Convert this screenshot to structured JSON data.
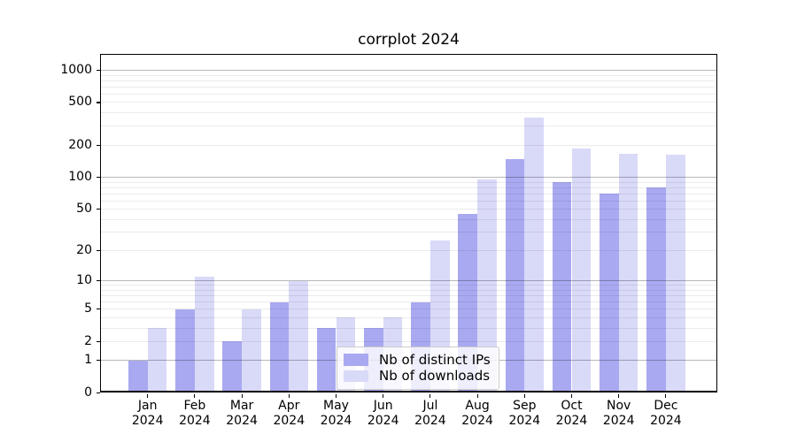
{
  "chart_data": {
    "type": "bar",
    "title": "corrplot 2024",
    "categories": [
      "Jan 2024",
      "Feb 2024",
      "Mar 2024",
      "Apr 2024",
      "May 2024",
      "Jun 2024",
      "Jul 2024",
      "Aug 2024",
      "Sep 2024",
      "Oct 2024",
      "Nov 2024",
      "Dec 2024"
    ],
    "series": [
      {
        "name": "Nb of distinct IPs",
        "color": "#a9a9f1",
        "values": [
          1,
          5,
          2,
          6,
          3,
          3,
          6,
          45,
          148,
          90,
          70,
          80
        ]
      },
      {
        "name": "Nb of downloads",
        "color": "#d9d9f8",
        "values": [
          3,
          11,
          5,
          10,
          4,
          4,
          25,
          95,
          365,
          186,
          167,
          163
        ]
      }
    ],
    "yscale": "log1p",
    "ylim": [
      0,
      1000
    ],
    "y_ticks": [
      0,
      1,
      2,
      5,
      10,
      20,
      50,
      100,
      200,
      500,
      1000
    ],
    "major_gridline_values": [
      1,
      10,
      100,
      1000
    ],
    "grid": true,
    "legend_position": "lower center"
  },
  "colors": {
    "major_grid": "rgba(0,0,0,0.28)",
    "minor_grid": "rgba(0,0,0,0.08)",
    "legend_bg": "rgba(255,255,255,0.8)",
    "axis": "#000000"
  }
}
